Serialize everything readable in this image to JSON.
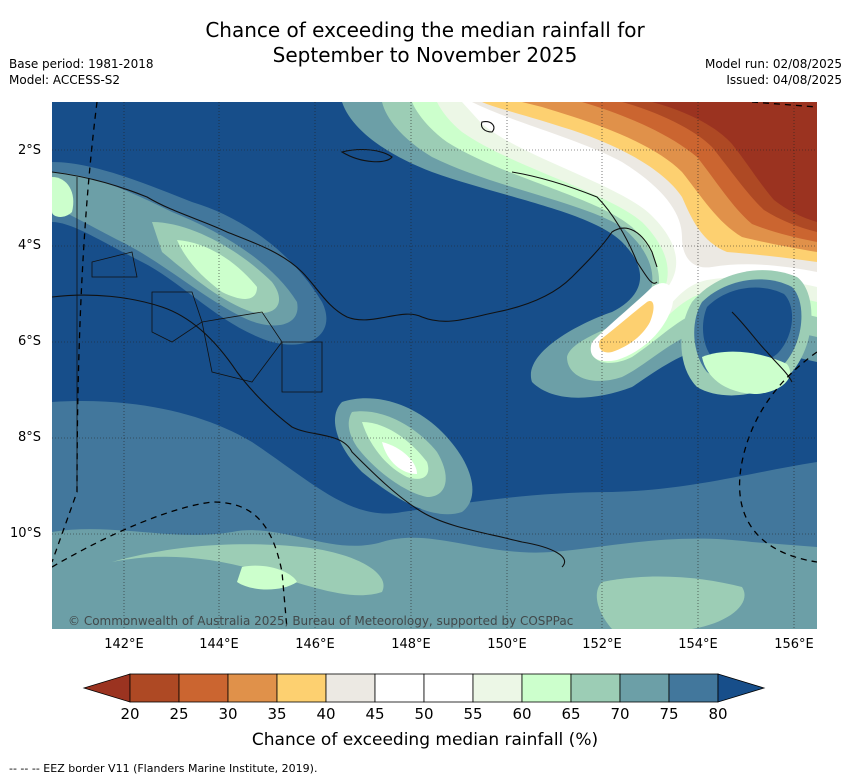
{
  "title": {
    "line1": "Chance of exceeding the median rainfall for",
    "line2": "September to November 2025"
  },
  "meta_left": {
    "base_period": "Base period: 1981-2018",
    "model": "Model: ACCESS-S2"
  },
  "meta_right": {
    "model_run": "Model run: 02/08/2025",
    "issued": "Issued: 04/08/2025"
  },
  "map": {
    "lat_labels": [
      "2°S",
      "4°S",
      "6°S",
      "8°S",
      "10°S"
    ],
    "lon_labels": [
      "142°E",
      "144°E",
      "146°E",
      "148°E",
      "150°E",
      "152°E",
      "154°E",
      "156°E"
    ],
    "copyright": "© Commonwealth of Australia 2025, Bureau of Meteorology, supported by COSPPac",
    "background_color": "#174e8a"
  },
  "colorbar": {
    "labels": [
      "20",
      "25",
      "30",
      "35",
      "40",
      "45",
      "50",
      "55",
      "60",
      "65",
      "70",
      "75",
      "80"
    ],
    "colors": [
      "#9b3320",
      "#ae4924",
      "#cb6530",
      "#e0914a",
      "#fdd070",
      "#ece9e3",
      "#ffffff",
      "#ffffff",
      "#ecf7e6",
      "#ccffcc",
      "#9ccdb5",
      "#6c9fa7",
      "#42779c",
      "#174e8a"
    ],
    "title": "Chance of exceeding median rainfall (%)"
  },
  "footer": "--  --  -- EEZ border V11 (Flanders Marine Institute, 2019)."
}
